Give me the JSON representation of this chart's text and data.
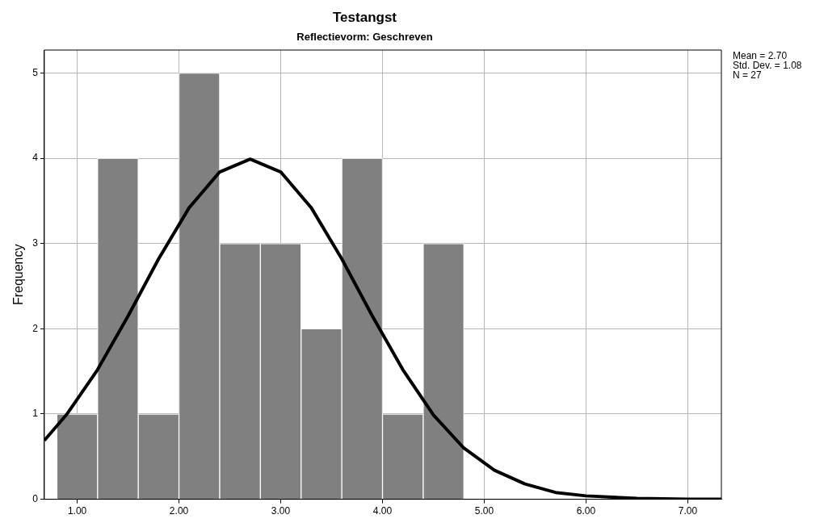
{
  "chart_data": {
    "type": "histogram",
    "title": "Testangst",
    "subtitle": "Reflectievorm: Geschreven",
    "ylabel": "Frequency",
    "annotations": [
      "Mean = 2.70",
      "Std. Dev. = 1.08",
      "N = 27"
    ],
    "bins": [
      0.8,
      1.2,
      1.6,
      2.0,
      2.4,
      2.8,
      3.2,
      3.6,
      4.0,
      4.4,
      4.8
    ],
    "series": [
      {
        "color": "#808080",
        "values": [
          1,
          4,
          1,
          5,
          3,
          3,
          2,
          4,
          1,
          3
        ]
      },
      {
        "type": "line",
        "color": "#000000",
        "x": [
          0.677,
          0.9,
          1.2,
          1.5,
          1.8,
          2.1,
          2.4,
          2.7,
          3.0,
          3.3,
          3.6,
          3.9,
          4.2,
          4.5,
          4.8,
          5.1,
          5.4,
          5.7,
          6.0,
          6.5,
          7.0,
          7.33
        ],
        "values": [
          0.69,
          1.0,
          1.52,
          2.15,
          2.82,
          3.42,
          3.84,
          3.99,
          3.84,
          3.42,
          2.82,
          2.15,
          1.52,
          0.99,
          0.6,
          0.34,
          0.18,
          0.08,
          0.04,
          0.01,
          0.0,
          0.0
        ]
      }
    ],
    "xlim": [
      0.677,
      7.33
    ],
    "xticks": [
      {
        "value": 1,
        "label": "1.00"
      },
      {
        "value": 2,
        "label": "2.00"
      },
      {
        "value": 3,
        "label": "3.00"
      },
      {
        "value": 4,
        "label": "4.00"
      },
      {
        "value": 5,
        "label": "5.00"
      },
      {
        "value": 6,
        "label": "6.00"
      },
      {
        "value": 7,
        "label": "7.00"
      }
    ],
    "ylim": [
      0,
      5.27
    ],
    "yticks": [
      0,
      1,
      2,
      3,
      4,
      5
    ],
    "grid": true
  }
}
